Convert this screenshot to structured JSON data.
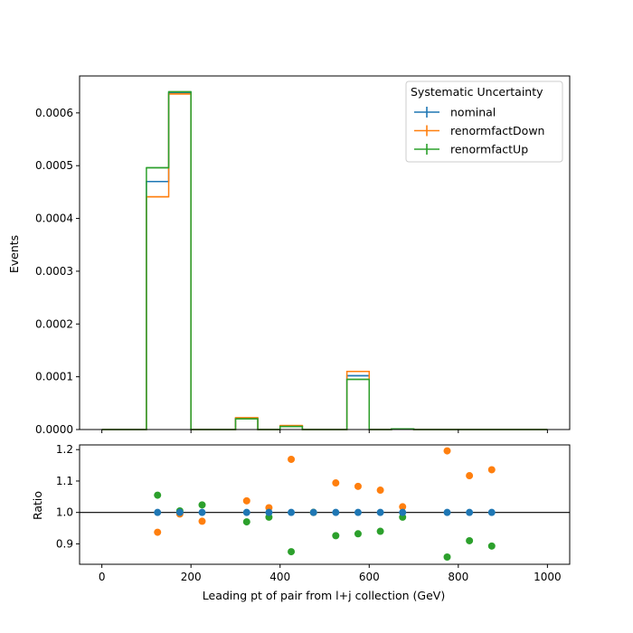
{
  "chart_data": [
    {
      "type": "step-histogram",
      "panel": "main",
      "xlim": [
        -50,
        1050
      ],
      "ylim": [
        0,
        0.00067
      ],
      "ylabel": "Events",
      "yticks": [
        0,
        0.0001,
        0.0002,
        0.0003,
        0.0004,
        0.0005,
        0.0006
      ],
      "ytick_labels": [
        "0.0000",
        "0.0001",
        "0.0002",
        "0.0003",
        "0.0004",
        "0.0005",
        "0.0006"
      ],
      "bin_edges": [
        0,
        50,
        100,
        150,
        200,
        250,
        300,
        350,
        400,
        450,
        500,
        550,
        600,
        650,
        700,
        750,
        800,
        850,
        900,
        950,
        1000
      ],
      "legend": {
        "title": "Systematic Uncertainty",
        "placement": "top-right"
      },
      "series": [
        {
          "name": "nominal",
          "color": "#1f77b4",
          "values": [
            0,
            0,
            0.00047,
            0.000638,
            0,
            0,
            2.1e-05,
            0,
            6.5e-06,
            0,
            0,
            0.000102,
            0,
            1.2e-06,
            0,
            0,
            0,
            0,
            0,
            0
          ]
        },
        {
          "name": "renormfactDown",
          "color": "#ff7f0e",
          "values": [
            0,
            0,
            0.000441,
            0.000636,
            0,
            0,
            2.23e-05,
            0,
            7.6e-06,
            0,
            0,
            0.00011,
            0,
            1.3e-06,
            0,
            0,
            0,
            0,
            0,
            0
          ]
        },
        {
          "name": "renormfactUp",
          "color": "#2ca02c",
          "values": [
            0,
            0,
            0.000496,
            0.00064,
            0,
            0,
            2.04e-05,
            0,
            5.7e-06,
            0,
            0,
            9.5e-05,
            0,
            1.2e-06,
            0,
            0,
            0,
            0,
            0,
            0
          ]
        }
      ]
    },
    {
      "type": "scatter",
      "panel": "ratio",
      "xlim": [
        -50,
        1050
      ],
      "ylim": [
        0.835,
        1.215
      ],
      "xlabel": "Leading pt of pair from l+j collection (GeV)",
      "ylabel": "Ratio",
      "xticks": [
        0,
        200,
        400,
        600,
        800,
        1000
      ],
      "xtick_labels": [
        "0",
        "200",
        "400",
        "600",
        "800",
        "1000"
      ],
      "yticks": [
        0.9,
        1.0,
        1.1,
        1.2
      ],
      "ytick_labels": [
        "0.9",
        "1.0",
        "1.1",
        "1.2"
      ],
      "reference_line": 1.0,
      "series": [
        {
          "name": "nominal",
          "color": "#1f77b4",
          "points": [
            [
              125,
              1.0
            ],
            [
              175,
              1.0
            ],
            [
              225,
              1.0
            ],
            [
              325,
              1.0
            ],
            [
              375,
              1.0
            ],
            [
              425,
              1.0
            ],
            [
              475,
              1.0
            ],
            [
              525,
              1.0
            ],
            [
              575,
              1.0
            ],
            [
              625,
              1.0
            ],
            [
              675,
              1.0
            ],
            [
              775,
              1.0
            ],
            [
              825,
              1.0
            ],
            [
              875,
              1.0
            ]
          ]
        },
        {
          "name": "renormfactDown",
          "color": "#ff7f0e",
          "points": [
            [
              125,
              0.937
            ],
            [
              175,
              0.995
            ],
            [
              225,
              0.972
            ],
            [
              325,
              1.037
            ],
            [
              375,
              1.015
            ],
            [
              425,
              1.169
            ],
            [
              475,
              1.0
            ],
            [
              525,
              1.094
            ],
            [
              575,
              1.083
            ],
            [
              625,
              1.071
            ],
            [
              675,
              1.018
            ],
            [
              775,
              1.196
            ],
            [
              825,
              1.117
            ],
            [
              875,
              1.136
            ]
          ]
        },
        {
          "name": "renormfactUp",
          "color": "#2ca02c",
          "points": [
            [
              125,
              1.055
            ],
            [
              175,
              1.005
            ],
            [
              225,
              1.024
            ],
            [
              325,
              0.97
            ],
            [
              375,
              0.985
            ],
            [
              425,
              0.875
            ],
            [
              475,
              1.0
            ],
            [
              525,
              0.926
            ],
            [
              575,
              0.932
            ],
            [
              625,
              0.94
            ],
            [
              675,
              0.985
            ],
            [
              775,
              0.858
            ],
            [
              825,
              0.91
            ],
            [
              875,
              0.893
            ]
          ]
        }
      ]
    }
  ]
}
